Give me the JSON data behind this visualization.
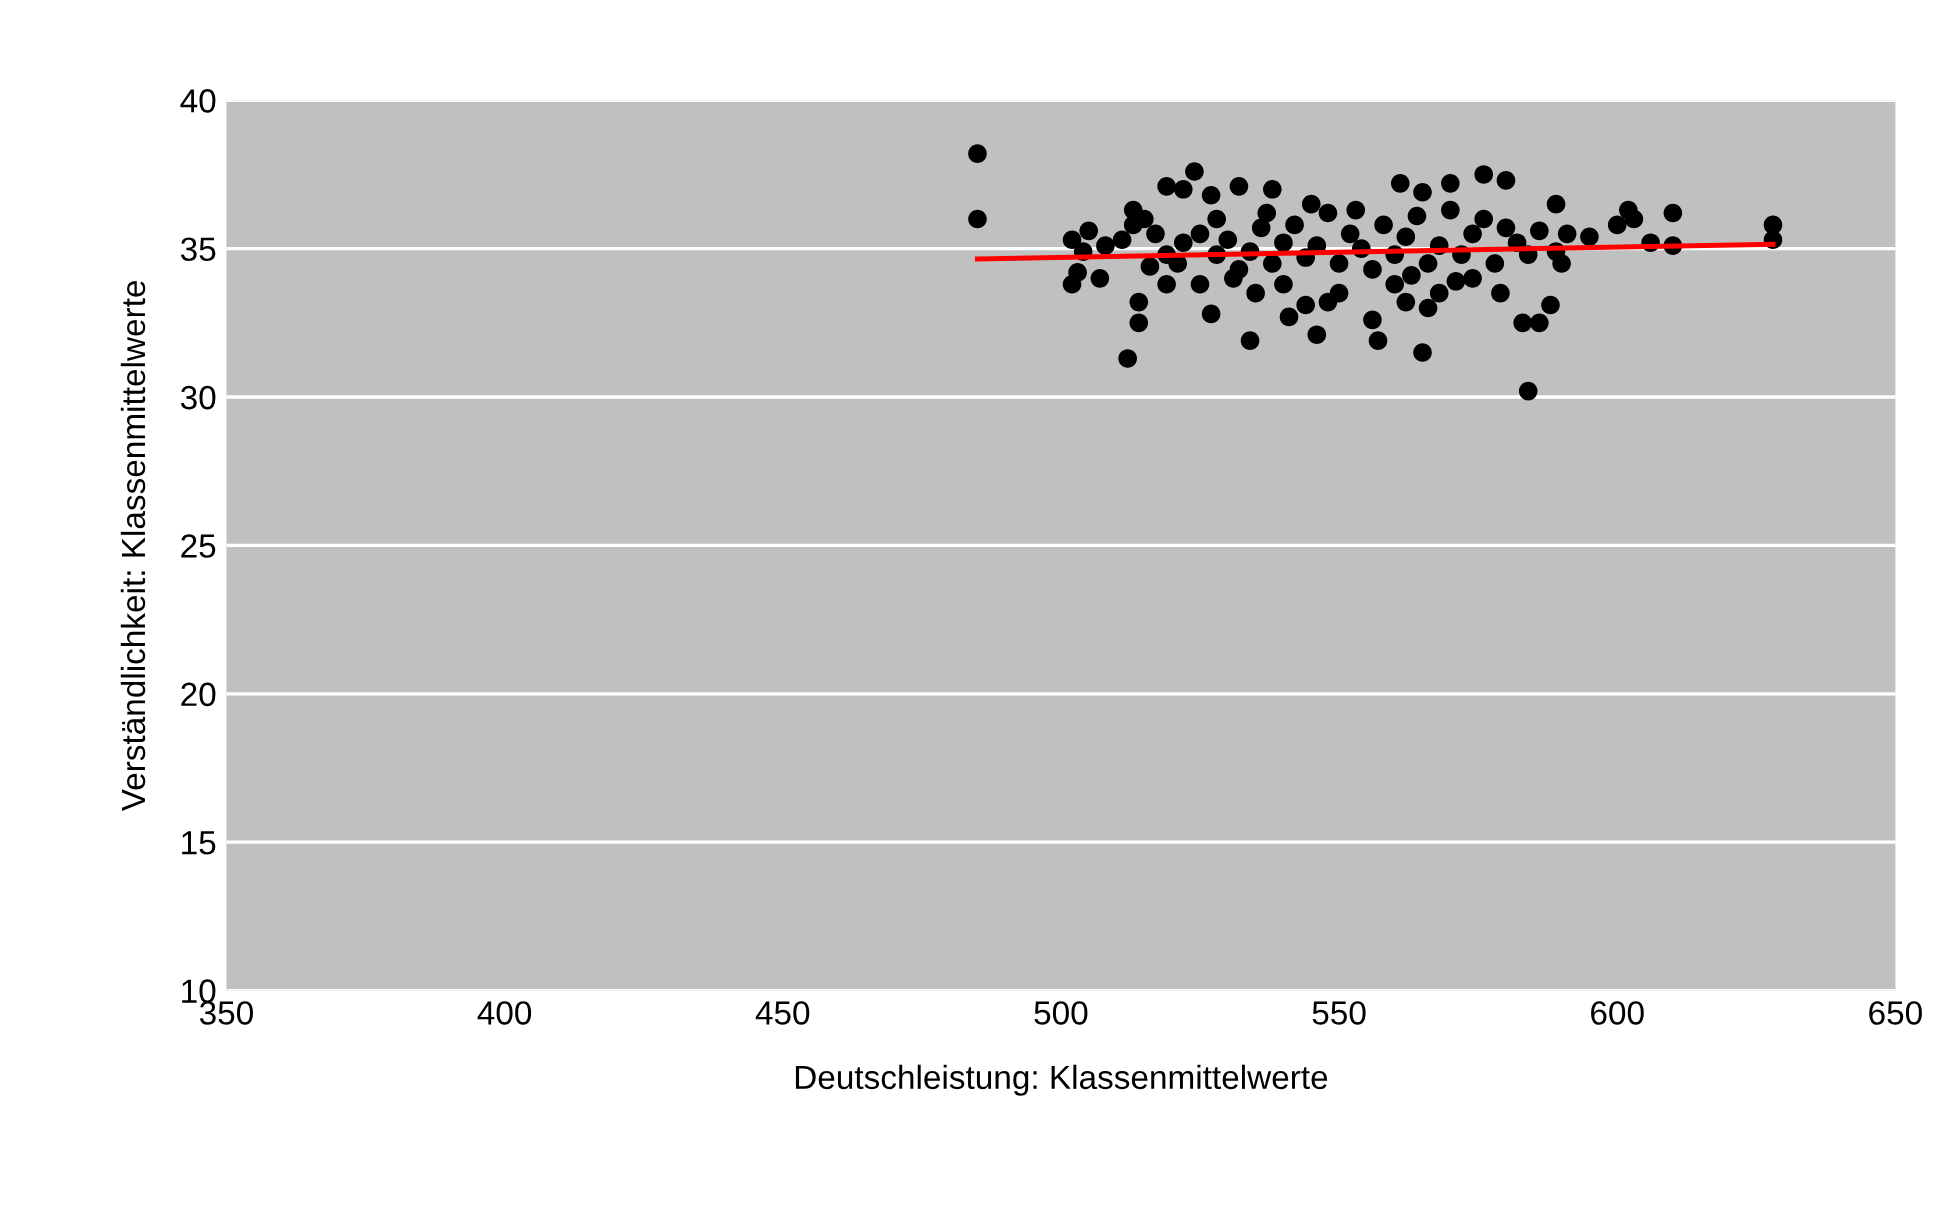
{
  "chart_data": {
    "type": "scatter",
    "xlabel": "Deutschleistung: Klassenmittelwerte",
    "ylabel": "Verständlichkeit: Klassenmittelwerte",
    "xlim": [
      350,
      650
    ],
    "xticks": [
      350,
      400,
      450,
      500,
      550,
      600,
      650
    ],
    "ylim": [
      10,
      40
    ],
    "yticks": [
      10,
      15,
      20,
      25,
      30,
      35,
      40
    ],
    "grid": "y",
    "series": [
      {
        "marker": "circle",
        "color": "#000000",
        "x": [
          485,
          485,
          628,
          628,
          584,
          512,
          565,
          557,
          534,
          583,
          586,
          514,
          514,
          524,
          519,
          522,
          527,
          532,
          538,
          576,
          580,
          570,
          561,
          565,
          589,
          602,
          603,
          610,
          600,
          606,
          610,
          591,
          589,
          590,
          595,
          588,
          579,
          568,
          562,
          548,
          541,
          546,
          535,
          527,
          525,
          507,
          503,
          502,
          504,
          502,
          505,
          508,
          511,
          513,
          515,
          513,
          517,
          519,
          521,
          522,
          525,
          528,
          530,
          532,
          534,
          536,
          538,
          540,
          542,
          544,
          546,
          548,
          550,
          552,
          554,
          556,
          558,
          560,
          562,
          564,
          566,
          568,
          570,
          572,
          574,
          576,
          578,
          580,
          582,
          584,
          586,
          540,
          550,
          556,
          560,
          566,
          574,
          531,
          537,
          545,
          553,
          519,
          528,
          544,
          563,
          571,
          516
        ],
        "values": [
          38.2,
          36.0,
          35.8,
          35.3,
          30.2,
          31.3,
          31.5,
          31.9,
          31.9,
          32.5,
          32.5,
          32.5,
          33.2,
          37.6,
          37.1,
          37.0,
          36.8,
          37.1,
          37.0,
          37.5,
          37.3,
          37.2,
          37.2,
          36.9,
          36.5,
          36.3,
          36.0,
          36.2,
          35.8,
          35.2,
          35.1,
          35.5,
          34.9,
          34.5,
          35.4,
          33.1,
          33.5,
          33.5,
          33.2,
          33.2,
          32.7,
          32.1,
          33.5,
          32.8,
          33.8,
          34.0,
          34.2,
          33.8,
          34.9,
          35.3,
          35.6,
          35.1,
          35.3,
          35.8,
          36.0,
          36.3,
          35.5,
          34.8,
          34.5,
          35.2,
          35.5,
          34.8,
          35.3,
          34.3,
          34.9,
          35.7,
          34.5,
          35.2,
          35.8,
          34.7,
          35.1,
          36.2,
          34.5,
          35.5,
          35.0,
          34.3,
          35.8,
          34.8,
          35.4,
          36.1,
          34.5,
          35.1,
          36.3,
          34.8,
          35.5,
          36.0,
          34.5,
          35.7,
          35.2,
          34.8,
          35.6,
          33.8,
          33.5,
          32.6,
          33.8,
          33.0,
          34.0,
          34.0,
          36.2,
          36.5,
          36.3,
          33.8,
          36.0,
          33.1,
          34.1,
          33.9,
          34.4
        ]
      },
      {
        "type": "line",
        "color": "#ff0000",
        "x": [
          485,
          628
        ],
        "values": [
          34.65,
          35.15
        ]
      }
    ]
  }
}
